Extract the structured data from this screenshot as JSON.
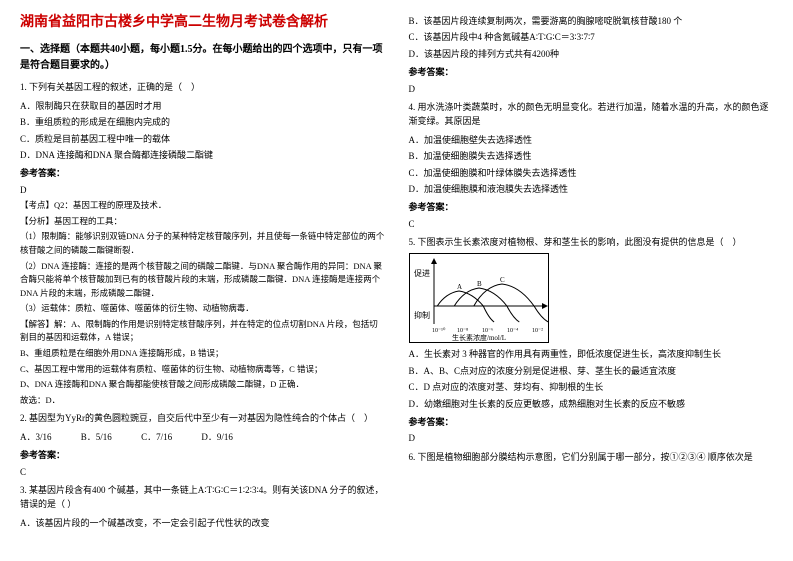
{
  "title": "湖南省益阳市古楼乡中学高二生物月考试卷含解析",
  "section1": "一、选择题（本题共40小题，每小题1.5分。在每小题给出的四个选项中，只有一项是符合题目要求的。）",
  "q1": {
    "stem": "1. 下列有关基因工程的叙述，正确的是（　）",
    "a": "A．限制酶只在获取目的基因时才用",
    "b": "B．重组质粒的形成是在细胞内完成的",
    "c": "C．质粒是目前基因工程中唯一的载体",
    "d": "D．DNA 连接酶和DNA 聚合酶都连接磷酸二酯键",
    "answerLabel": "参考答案：",
    "answer": "D",
    "focus": "【考点】Q2：基因工程的原理及技术．",
    "analysisLabel": "【分析】基因工程的工具：",
    "item1": "（1）限制酶：能够识别双链DNA 分子的某种特定核苷酸序列，并且使每一条链中特定部位的两个核苷酸之间的磷酸二酯键断裂．",
    "item2": "（2）DNA 连接酶：连接的是两个核苷酸之间的磷酸二酯键．与DNA 聚合酶作用的异同：DNA 聚合酶只能将单个核苷酸加到已有的核苷酸片段的末端，形成磷酸二酯键．DNA 连接酶是连接两个DNA 片段的末端，形成磷酸二酯键．",
    "item3": "（3）运载体：质粒、噬菌体、噬菌体的衍生物、动植物病毒．",
    "solveLabel": "【解答】解：A、限制酶的作用是识别特定核苷酸序列，并在特定的位点切割DNA 片段，包括切割目的基因和运载体，A 错误；",
    "solveB": "B、重组质粒是在细胞外用DNA 连接酶形成，B 错误；",
    "solveC": "C、基因工程中常用的运载体有质粒、噬菌体的衍生物、动植物病毒等，C 错误；",
    "solveD": "D、DNA 连接酶和DNA 聚合酶都能使核苷酸之间形成磷酸二酯键，D 正确．",
    "conclude": "故选：D．"
  },
  "q2": {
    "stem": "2. 基因型为YyRr的黄色圆粒豌豆，自交后代中至少有一对基因为隐性纯合的个体占（　）",
    "a": "A．3/16",
    "b": "B．5/16",
    "c": "C．7/16",
    "d": "D．9/16",
    "answerLabel": "参考答案：",
    "answer": "C"
  },
  "q3": {
    "stem": "3. 某基因片段含有400 个碱基，其中一条链上A∶T∶G∶C＝1∶2∶3∶4。则有关该DNA 分子的叙述，错误的是（ ）",
    "a": "A．该基因片段的一个碱基改变，不一定会引起子代性状的改变"
  },
  "q3r": {
    "b": "B．该基因片段连续复制两次，需要游离的胸腺嘧啶脱氧核苷酸180 个",
    "c": "C．该基因片段中4 种含氮碱基A∶T∶G∶C＝3∶3∶7∶7",
    "d": "D．该基因片段的排列方式共有4200种",
    "answerLabel": "参考答案：",
    "answer": "D"
  },
  "q4": {
    "stem": "4. 用水洗涤叶类蔬菜时，水的颜色无明显变化。若进行加温，随着水温的升高，水的颜色逐渐变绿。其原因是",
    "a": "A．加温使细胞壁失去选择透性",
    "b": "B．加温使细胞膜失去选择透性",
    "c": "C．加温使细胞膜和叶绿体膜失去选择透性",
    "d": "D．加温使细胞膜和液泡膜失去选择透性",
    "answerLabel": "参考答案：",
    "answer": "C"
  },
  "q5": {
    "stem": "5. 下图表示生长素浓度对植物根、芽和茎生长的影响，此图没有提供的信息是（　）",
    "chart": {
      "type": "line",
      "yLabels": [
        "促进",
        "抑制"
      ],
      "xLabel": "生长素浓度/mol/L",
      "xTicks": [
        "10⁻¹⁰",
        "10⁻⁸",
        "10⁻⁶",
        "10⁻⁴",
        "10⁻²"
      ],
      "curves": [
        {
          "label": "A",
          "peakX": 25,
          "peakY": 15,
          "color": "#000"
        },
        {
          "label": "B",
          "peakX": 45,
          "peakY": 18,
          "color": "#000"
        },
        {
          "label": "C",
          "peakX": 68,
          "peakY": 22,
          "color": "#000"
        }
      ],
      "baselineY": 50,
      "bg": "#ffffff",
      "stroke": "#000000"
    },
    "a": "A．生长素对 3 种器官的作用具有两重性，即低浓度促进生长，高浓度抑制生长",
    "b": "B．A、B、C点对应的浓度分别是促进根、芽、茎生长的最适宜浓度",
    "c": "C．D 点对应的浓度对茎、芽均有、抑制根的生长",
    "d": "D．幼嫩细胞对生长素的反应更敏感，成熟细胞对生长素的反应不敏感",
    "answerLabel": "参考答案：",
    "answer": "D"
  },
  "q6": {
    "stem": "6. 下图是植物细胞部分膜结构示意图，它们分别属于哪一部分，按①②③④ 顺序依次是"
  }
}
